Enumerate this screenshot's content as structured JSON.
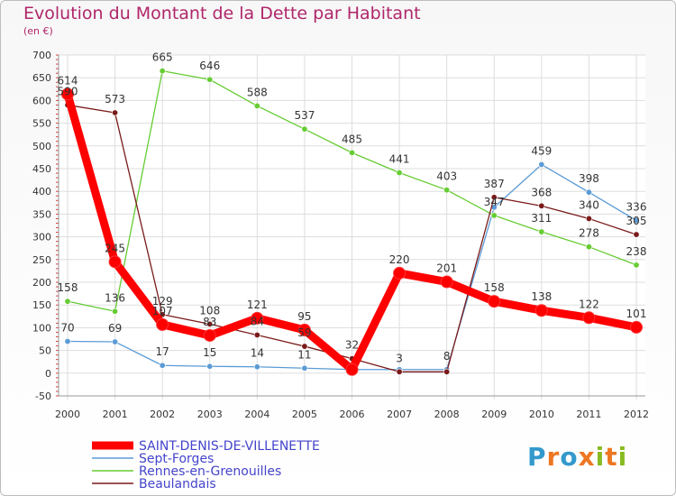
{
  "chart_data": {
    "type": "line",
    "title": "Evolution du Montant de la Dette par Habitant",
    "subtitle": "(en €)",
    "x": [
      "2000",
      "2001",
      "2002",
      "2003",
      "2004",
      "2005",
      "2006",
      "2007",
      "2008",
      "2009",
      "2010",
      "2011",
      "2012"
    ],
    "ylim": [
      -50,
      700
    ],
    "yticks": [
      "-50",
      "0",
      "50",
      "100",
      "150",
      "200",
      "250",
      "300",
      "350",
      "400",
      "450",
      "500",
      "550",
      "600",
      "650",
      "700"
    ],
    "grid": true,
    "legend_position": "bottom-left",
    "series": [
      {
        "name": "SAINT-DENIS-DE-VILLENETTE",
        "color": "#ff0000",
        "values": [
          614,
          245,
          107,
          83,
          121,
          95,
          8,
          220,
          201,
          158,
          138,
          122,
          101
        ],
        "labels": [
          "614",
          "245",
          "107",
          "83",
          "121",
          "95",
          "",
          "220",
          "201",
          "158",
          "138",
          "122",
          "101"
        ]
      },
      {
        "name": "Sept-Forges",
        "color": "#5b9bd5",
        "values": [
          70,
          69,
          17,
          15,
          14,
          11,
          8,
          8,
          8,
          365,
          459,
          398,
          336
        ],
        "labels": [
          "70",
          "69",
          "17",
          "15",
          "14",
          "11",
          "",
          "",
          "8",
          "",
          "459",
          "398",
          "336"
        ]
      },
      {
        "name": "Rennes-en-Grenouilles",
        "color": "#66cc33",
        "values": [
          158,
          136,
          665,
          646,
          588,
          537,
          485,
          441,
          403,
          347,
          311,
          278,
          238
        ],
        "labels": [
          "158",
          "136",
          "665",
          "646",
          "588",
          "537",
          "485",
          "441",
          "403",
          "347",
          "311",
          "278",
          "238"
        ]
      },
      {
        "name": "Beaulandais",
        "color": "#7a1a1a",
        "values": [
          590,
          573,
          129,
          108,
          84,
          59,
          32,
          3,
          3,
          387,
          368,
          340,
          305
        ],
        "labels": [
          "590",
          "573",
          "129",
          "108",
          "84",
          "59",
          "32",
          "3",
          "",
          "387",
          "368",
          "340",
          "305"
        ]
      }
    ]
  },
  "logo": {
    "text": "Proxiti",
    "letters": [
      "P",
      "r",
      "o",
      "x",
      "i",
      "t",
      "i"
    ],
    "colors": [
      "#3399cc",
      "#ee7722",
      "#3399cc",
      "#ee7722",
      "#88bb22",
      "#ee7722",
      "#88bb22"
    ]
  }
}
